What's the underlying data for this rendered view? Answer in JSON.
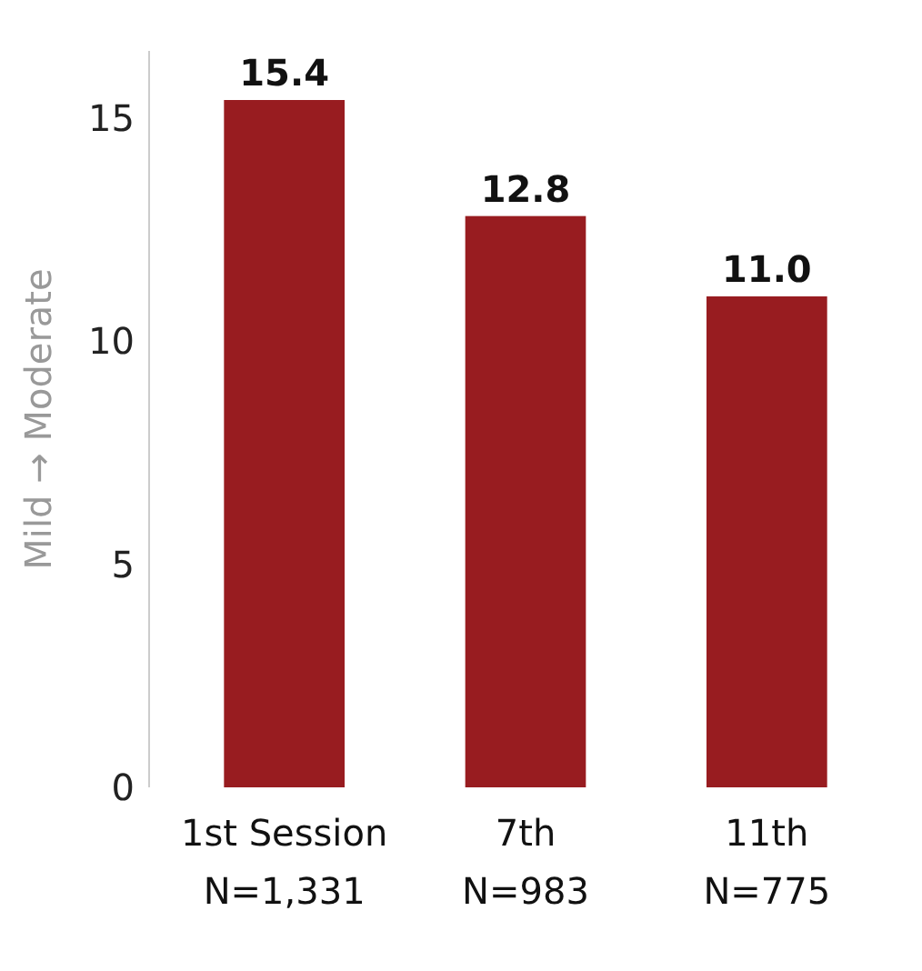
{
  "chart_data": {
    "type": "bar",
    "categories": [
      "1st Session\nN=1,331",
      "7th\nN=983",
      "11th\nN=775"
    ],
    "values": [
      15.4,
      12.8,
      11.0
    ],
    "value_labels": [
      "15.4",
      "12.8",
      "11.0"
    ],
    "color": "#981c20",
    "ylabel": "Mild → Moderate",
    "ylim": [
      0,
      16.5
    ],
    "yticks": [
      0,
      5,
      10,
      15
    ],
    "grid": false
  }
}
